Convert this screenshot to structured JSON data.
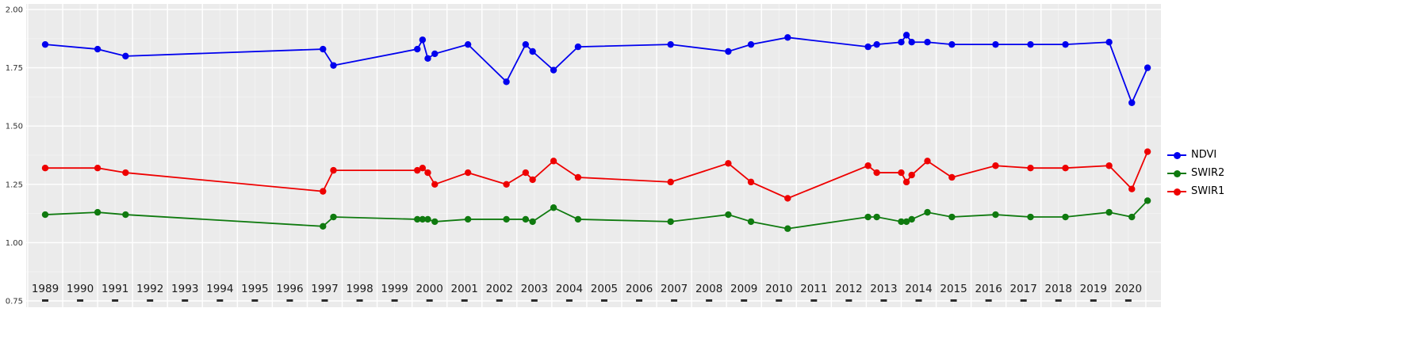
{
  "figure": {
    "background": "#ffffff",
    "panel_background": "#ebebeb",
    "grid_major_color": "#ffffff",
    "grid_minor_color": "#f4f4f4",
    "axis_text_color": "#1a1a1a",
    "tick_mark_color": "#2b2b2b"
  },
  "legend": {
    "items": [
      {
        "label": "NDVI",
        "color": "#0000ee"
      },
      {
        "label": "SWIR2",
        "color": "#0f7a0f"
      },
      {
        "label": "SWIR1",
        "color": "#ee0000"
      }
    ]
  },
  "chart_data": {
    "type": "line",
    "title": "",
    "xlabel": "",
    "ylabel": "",
    "grid": true,
    "legend_position": "right",
    "xlim": [
      1988.45,
      2020.95
    ],
    "ylim": [
      0.75,
      2.02
    ],
    "x_ticks": [
      1989,
      1990,
      1991,
      1992,
      1993,
      1994,
      1995,
      1996,
      1997,
      1998,
      1999,
      2000,
      2001,
      2002,
      2003,
      2004,
      2005,
      2006,
      2007,
      2008,
      2009,
      2010,
      2011,
      2012,
      2013,
      2014,
      2015,
      2016,
      2017,
      2018,
      2019,
      2020
    ],
    "y_ticks": [
      2.0,
      1.75,
      1.5,
      1.25,
      1.0,
      0.75
    ],
    "y_tick_labels": [
      "2.00",
      "1.75",
      "1.50",
      "1.25",
      "1.00",
      "0.75"
    ],
    "x": [
      1989.0,
      1990.5,
      1991.3,
      1996.95,
      1997.25,
      1999.65,
      1999.8,
      1999.95,
      2000.15,
      2001.1,
      2002.2,
      2002.75,
      2002.95,
      2003.55,
      2004.25,
      2006.9,
      2008.55,
      2009.2,
      2010.25,
      2012.55,
      2012.8,
      2013.5,
      2013.65,
      2013.8,
      2014.25,
      2014.95,
      2016.2,
      2017.2,
      2018.2,
      2019.45,
      2020.1,
      2020.55
    ],
    "series": [
      {
        "name": "NDVI",
        "color": "#0000ee",
        "values": [
          1.85,
          1.83,
          1.8,
          1.83,
          1.76,
          1.83,
          1.87,
          1.79,
          1.81,
          1.85,
          1.69,
          1.85,
          1.82,
          1.74,
          1.84,
          1.85,
          1.82,
          1.85,
          1.88,
          1.84,
          1.85,
          1.86,
          1.89,
          1.86,
          1.86,
          1.85,
          1.85,
          1.85,
          1.85,
          1.86,
          1.6,
          1.75
        ]
      },
      {
        "name": "SWIR2",
        "color": "#0f7a0f",
        "values": [
          1.12,
          1.13,
          1.12,
          1.07,
          1.11,
          1.1,
          1.1,
          1.1,
          1.09,
          1.1,
          1.1,
          1.1,
          1.09,
          1.15,
          1.1,
          1.09,
          1.12,
          1.09,
          1.06,
          1.11,
          1.11,
          1.09,
          1.09,
          1.1,
          1.13,
          1.11,
          1.12,
          1.11,
          1.11,
          1.13,
          1.11,
          1.18
        ]
      },
      {
        "name": "SWIR1",
        "color": "#ee0000",
        "values": [
          1.32,
          1.32,
          1.3,
          1.22,
          1.31,
          1.31,
          1.32,
          1.3,
          1.25,
          1.3,
          1.25,
          1.3,
          1.27,
          1.35,
          1.28,
          1.26,
          1.34,
          1.26,
          1.19,
          1.33,
          1.3,
          1.3,
          1.26,
          1.29,
          1.35,
          1.28,
          1.33,
          1.32,
          1.32,
          1.33,
          1.23,
          1.39
        ]
      }
    ]
  }
}
